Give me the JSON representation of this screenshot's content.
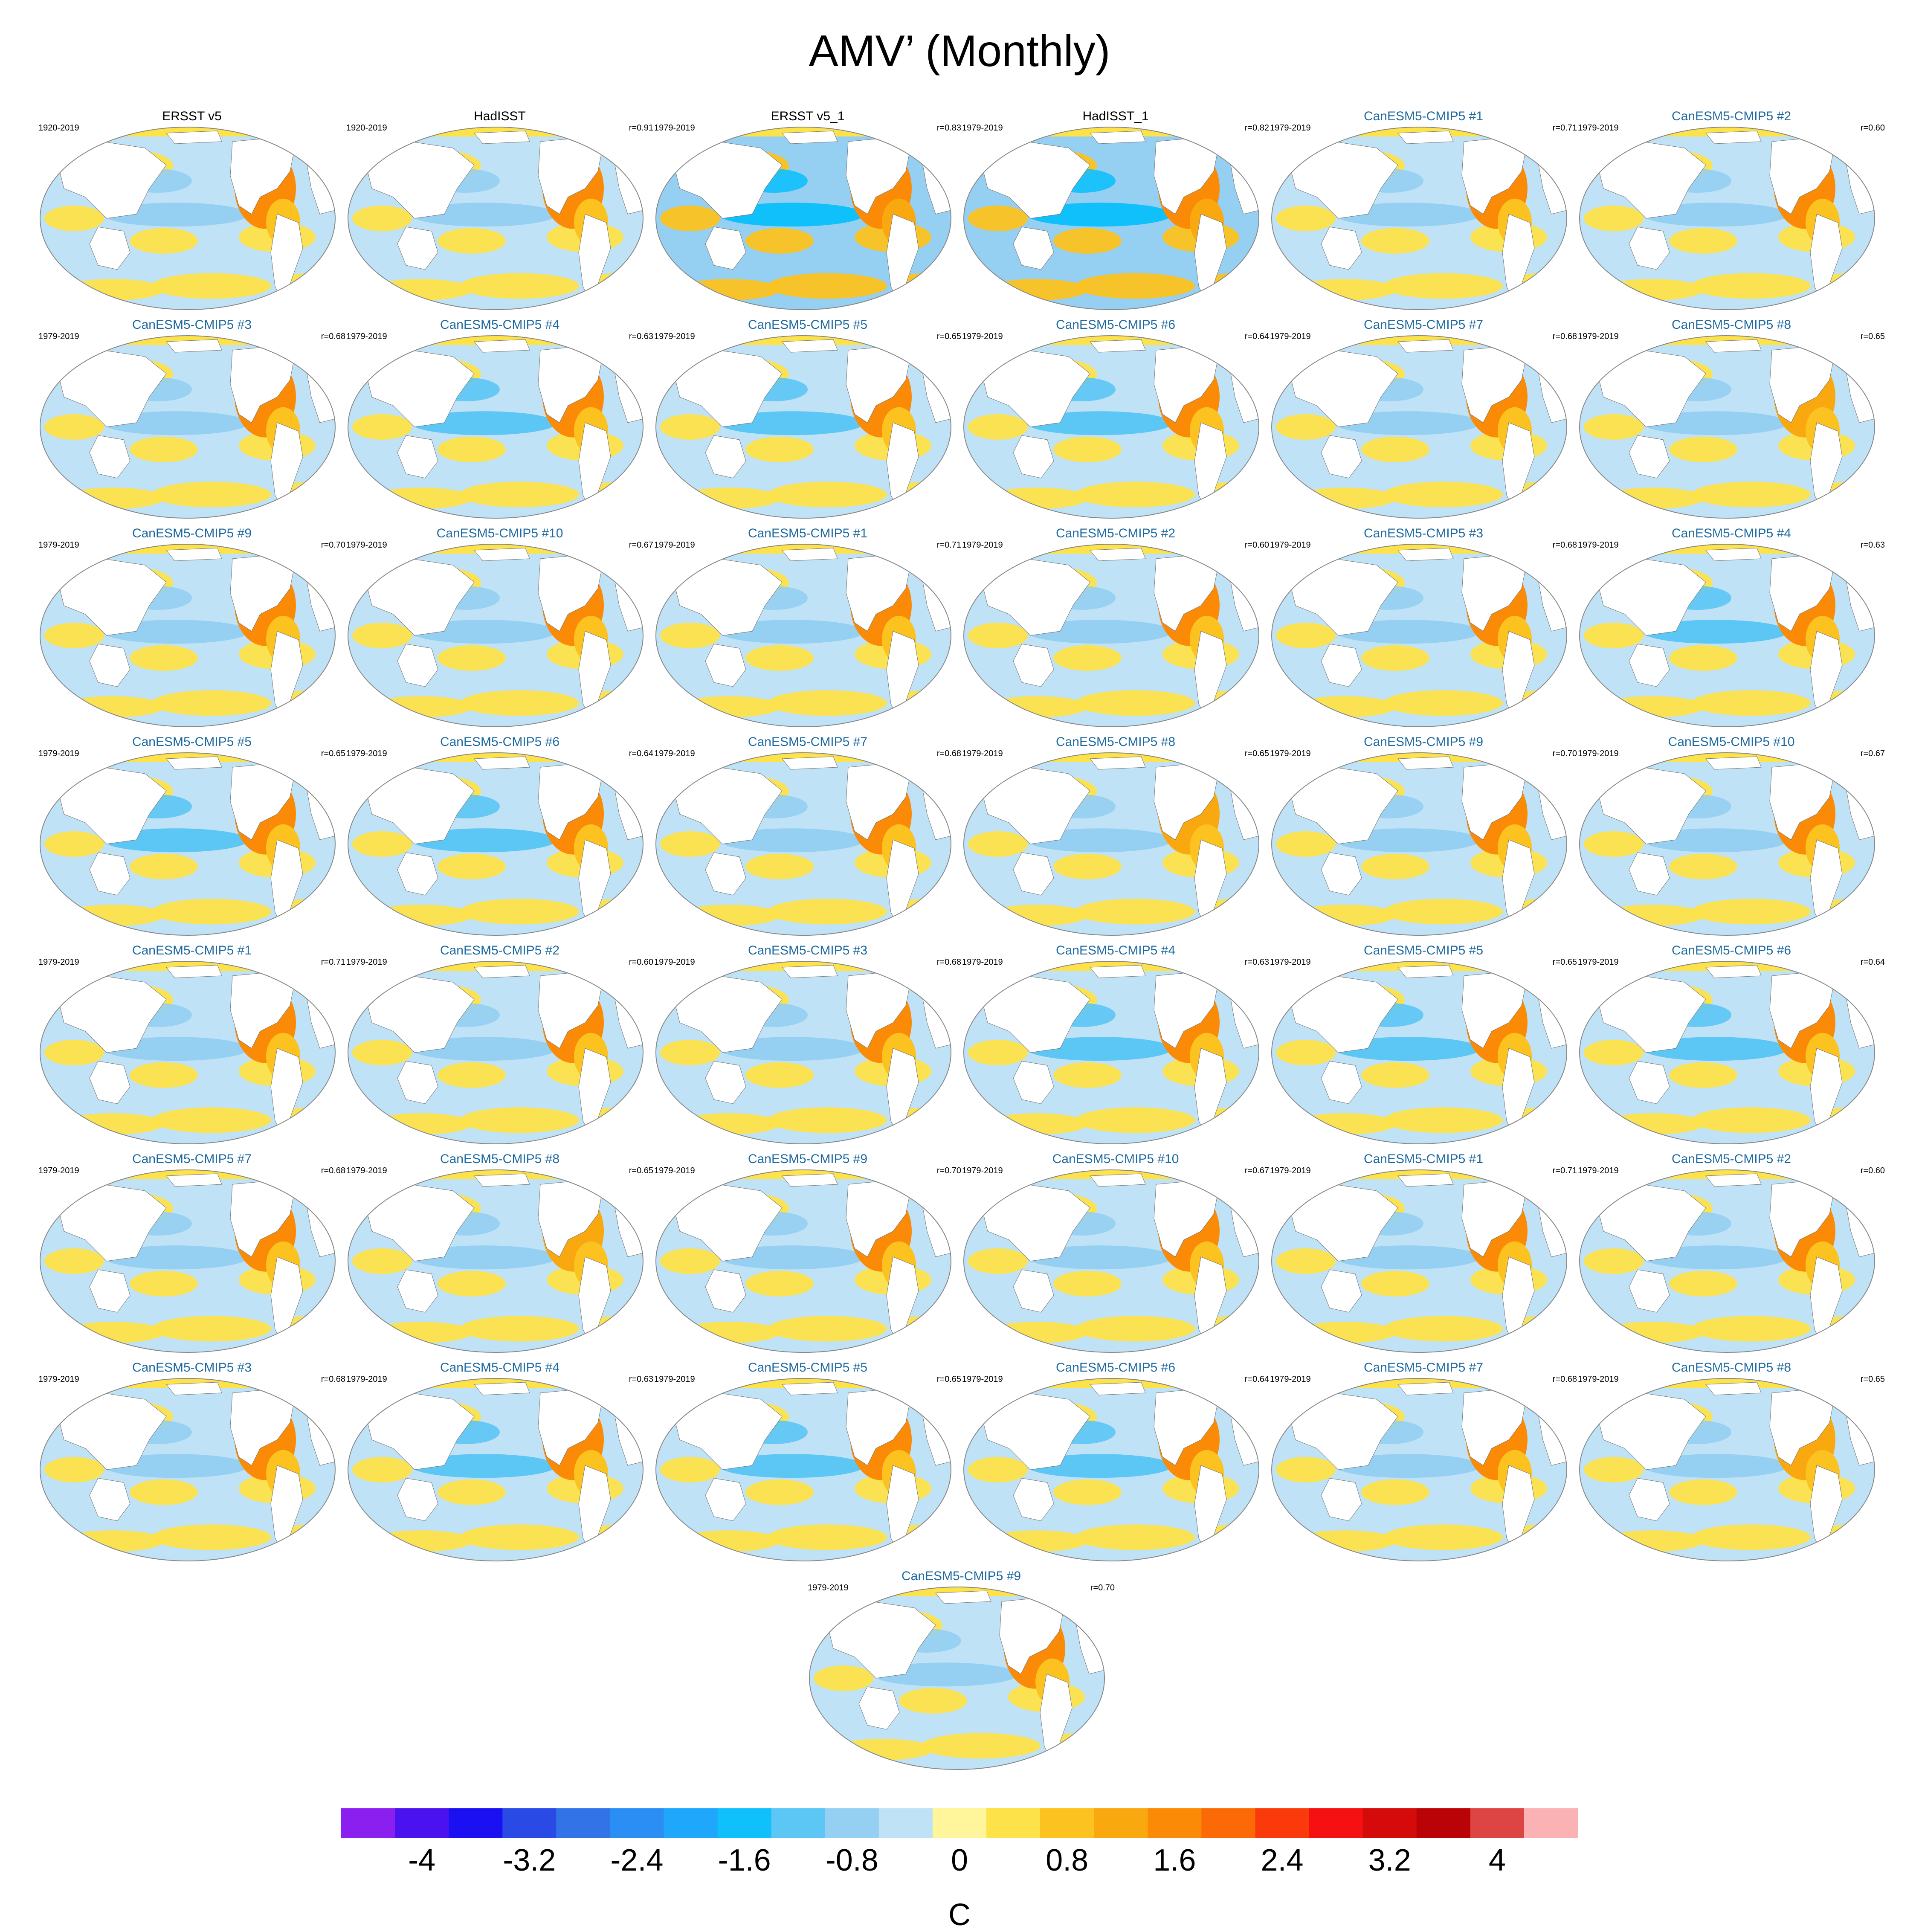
{
  "title": "AMV’ (Monthly)",
  "chart_data": {
    "type": "map-panels",
    "title": "AMV’ (Monthly)",
    "panels": [
      {
        "title": "ERSST v5",
        "years": "1920-2019",
        "corr": "",
        "kind": "obs",
        "tone": "ersst_full"
      },
      {
        "title": "HadISST",
        "years": "1920-2019",
        "corr": "r=0.91",
        "kind": "obs",
        "tone": "had_full"
      },
      {
        "title": "ERSST v5_1",
        "years": "1979-2019",
        "corr": "r=0.83",
        "kind": "obs",
        "tone": "ersst_recent"
      },
      {
        "title": "HadISST_1",
        "years": "1979-2019",
        "corr": "r=0.82",
        "kind": "obs",
        "tone": "had_recent"
      },
      {
        "title": "CanESM5-CMIP5 #1",
        "years": "1979-2019",
        "corr": "r=0.71",
        "kind": "model",
        "tone": "m1"
      },
      {
        "title": "CanESM5-CMIP5 #2",
        "years": "1979-2019",
        "corr": "r=0.60",
        "kind": "model",
        "tone": "m2"
      },
      {
        "title": "CanESM5-CMIP5 #3",
        "years": "1979-2019",
        "corr": "r=0.68",
        "kind": "model",
        "tone": "m3"
      },
      {
        "title": "CanESM5-CMIP5 #4",
        "years": "1979-2019",
        "corr": "r=0.63",
        "kind": "model",
        "tone": "m4"
      },
      {
        "title": "CanESM5-CMIP5 #5",
        "years": "1979-2019",
        "corr": "r=0.65",
        "kind": "model",
        "tone": "m5"
      },
      {
        "title": "CanESM5-CMIP5 #6",
        "years": "1979-2019",
        "corr": "r=0.64",
        "kind": "model",
        "tone": "m6"
      },
      {
        "title": "CanESM5-CMIP5 #7",
        "years": "1979-2019",
        "corr": "r=0.68",
        "kind": "model",
        "tone": "m7"
      },
      {
        "title": "CanESM5-CMIP5 #8",
        "years": "1979-2019",
        "corr": "r=0.65",
        "kind": "model",
        "tone": "m8"
      },
      {
        "title": "CanESM5-CMIP5 #9",
        "years": "1979-2019",
        "corr": "r=0.70",
        "kind": "model",
        "tone": "m9"
      },
      {
        "title": "CanESM5-CMIP5 #10",
        "years": "1979-2019",
        "corr": "r=0.67",
        "kind": "model",
        "tone": "m10"
      },
      {
        "title": "CanESM5-CMIP5 #1",
        "years": "1979-2019",
        "corr": "r=0.71",
        "kind": "model",
        "tone": "m1"
      },
      {
        "title": "CanESM5-CMIP5 #2",
        "years": "1979-2019",
        "corr": "r=0.60",
        "kind": "model",
        "tone": "m2"
      },
      {
        "title": "CanESM5-CMIP5 #3",
        "years": "1979-2019",
        "corr": "r=0.68",
        "kind": "model",
        "tone": "m3"
      },
      {
        "title": "CanESM5-CMIP5 #4",
        "years": "1979-2019",
        "corr": "r=0.63",
        "kind": "model",
        "tone": "m4"
      },
      {
        "title": "CanESM5-CMIP5 #5",
        "years": "1979-2019",
        "corr": "r=0.65",
        "kind": "model",
        "tone": "m5"
      },
      {
        "title": "CanESM5-CMIP5 #6",
        "years": "1979-2019",
        "corr": "r=0.64",
        "kind": "model",
        "tone": "m6"
      },
      {
        "title": "CanESM5-CMIP5 #7",
        "years": "1979-2019",
        "corr": "r=0.68",
        "kind": "model",
        "tone": "m7"
      },
      {
        "title": "CanESM5-CMIP5 #8",
        "years": "1979-2019",
        "corr": "r=0.65",
        "kind": "model",
        "tone": "m8"
      },
      {
        "title": "CanESM5-CMIP5 #9",
        "years": "1979-2019",
        "corr": "r=0.70",
        "kind": "model",
        "tone": "m9"
      },
      {
        "title": "CanESM5-CMIP5 #10",
        "years": "1979-2019",
        "corr": "r=0.67",
        "kind": "model",
        "tone": "m10"
      },
      {
        "title": "CanESM5-CMIP5 #1",
        "years": "1979-2019",
        "corr": "r=0.71",
        "kind": "model",
        "tone": "m1"
      },
      {
        "title": "CanESM5-CMIP5 #2",
        "years": "1979-2019",
        "corr": "r=0.60",
        "kind": "model",
        "tone": "m2"
      },
      {
        "title": "CanESM5-CMIP5 #3",
        "years": "1979-2019",
        "corr": "r=0.68",
        "kind": "model",
        "tone": "m3"
      },
      {
        "title": "CanESM5-CMIP5 #4",
        "years": "1979-2019",
        "corr": "r=0.63",
        "kind": "model",
        "tone": "m4"
      },
      {
        "title": "CanESM5-CMIP5 #5",
        "years": "1979-2019",
        "corr": "r=0.65",
        "kind": "model",
        "tone": "m5"
      },
      {
        "title": "CanESM5-CMIP5 #6",
        "years": "1979-2019",
        "corr": "r=0.64",
        "kind": "model",
        "tone": "m6"
      },
      {
        "title": "CanESM5-CMIP5 #7",
        "years": "1979-2019",
        "corr": "r=0.68",
        "kind": "model",
        "tone": "m7"
      },
      {
        "title": "CanESM5-CMIP5 #8",
        "years": "1979-2019",
        "corr": "r=0.65",
        "kind": "model",
        "tone": "m8"
      },
      {
        "title": "CanESM5-CMIP5 #9",
        "years": "1979-2019",
        "corr": "r=0.70",
        "kind": "model",
        "tone": "m9"
      },
      {
        "title": "CanESM5-CMIP5 #10",
        "years": "1979-2019",
        "corr": "r=0.67",
        "kind": "model",
        "tone": "m10"
      },
      {
        "title": "CanESM5-CMIP5 #1",
        "years": "1979-2019",
        "corr": "r=0.71",
        "kind": "model",
        "tone": "m1"
      },
      {
        "title": "CanESM5-CMIP5 #2",
        "years": "1979-2019",
        "corr": "r=0.60",
        "kind": "model",
        "tone": "m2"
      },
      {
        "title": "CanESM5-CMIP5 #3",
        "years": "1979-2019",
        "corr": "r=0.68",
        "kind": "model",
        "tone": "m3"
      },
      {
        "title": "CanESM5-CMIP5 #4",
        "years": "1979-2019",
        "corr": "r=0.63",
        "kind": "model",
        "tone": "m4"
      },
      {
        "title": "CanESM5-CMIP5 #5",
        "years": "1979-2019",
        "corr": "r=0.65",
        "kind": "model",
        "tone": "m5"
      },
      {
        "title": "CanESM5-CMIP5 #6",
        "years": "1979-2019",
        "corr": "r=0.64",
        "kind": "model",
        "tone": "m6"
      },
      {
        "title": "CanESM5-CMIP5 #7",
        "years": "1979-2019",
        "corr": "r=0.68",
        "kind": "model",
        "tone": "m7"
      },
      {
        "title": "CanESM5-CMIP5 #8",
        "years": "1979-2019",
        "corr": "r=0.65",
        "kind": "model",
        "tone": "m8"
      },
      {
        "title": "CanESM5-CMIP5 #9",
        "years": "1979-2019",
        "corr": "r=0.70",
        "kind": "model",
        "tone": "m9"
      }
    ],
    "colorbar": {
      "unit": "C",
      "levels": [
        -4.4,
        -4,
        -3.6,
        -3.2,
        -2.8,
        -2.4,
        -2,
        -1.6,
        -1.2,
        -0.8,
        -0.4,
        0,
        0.4,
        0.8,
        1.2,
        1.6,
        2,
        2.4,
        2.8,
        3.2,
        3.6,
        4,
        4.4
      ],
      "colors": [
        "#8a1ff0",
        "#4b12f0",
        "#1a10f2",
        "#2a4ae6",
        "#3373e8",
        "#2a8ef5",
        "#1ea7fb",
        "#10c0fb",
        "#5cc6f5",
        "#95cff2",
        "#bfe2f6",
        "#fff69b",
        "#fde24a",
        "#fcc21f",
        "#f9a80f",
        "#fb8b06",
        "#fb6a07",
        "#fb3a0c",
        "#f51011",
        "#d50a0a",
        "#ba0307",
        "#dd4444",
        "#fbb2b4"
      ],
      "tick_labels": [
        "-4",
        "-3.2",
        "-2.4",
        "-1.6",
        "-0.8",
        "0",
        "0.8",
        "1.6",
        "2.4",
        "3.2",
        "4"
      ]
    }
  }
}
